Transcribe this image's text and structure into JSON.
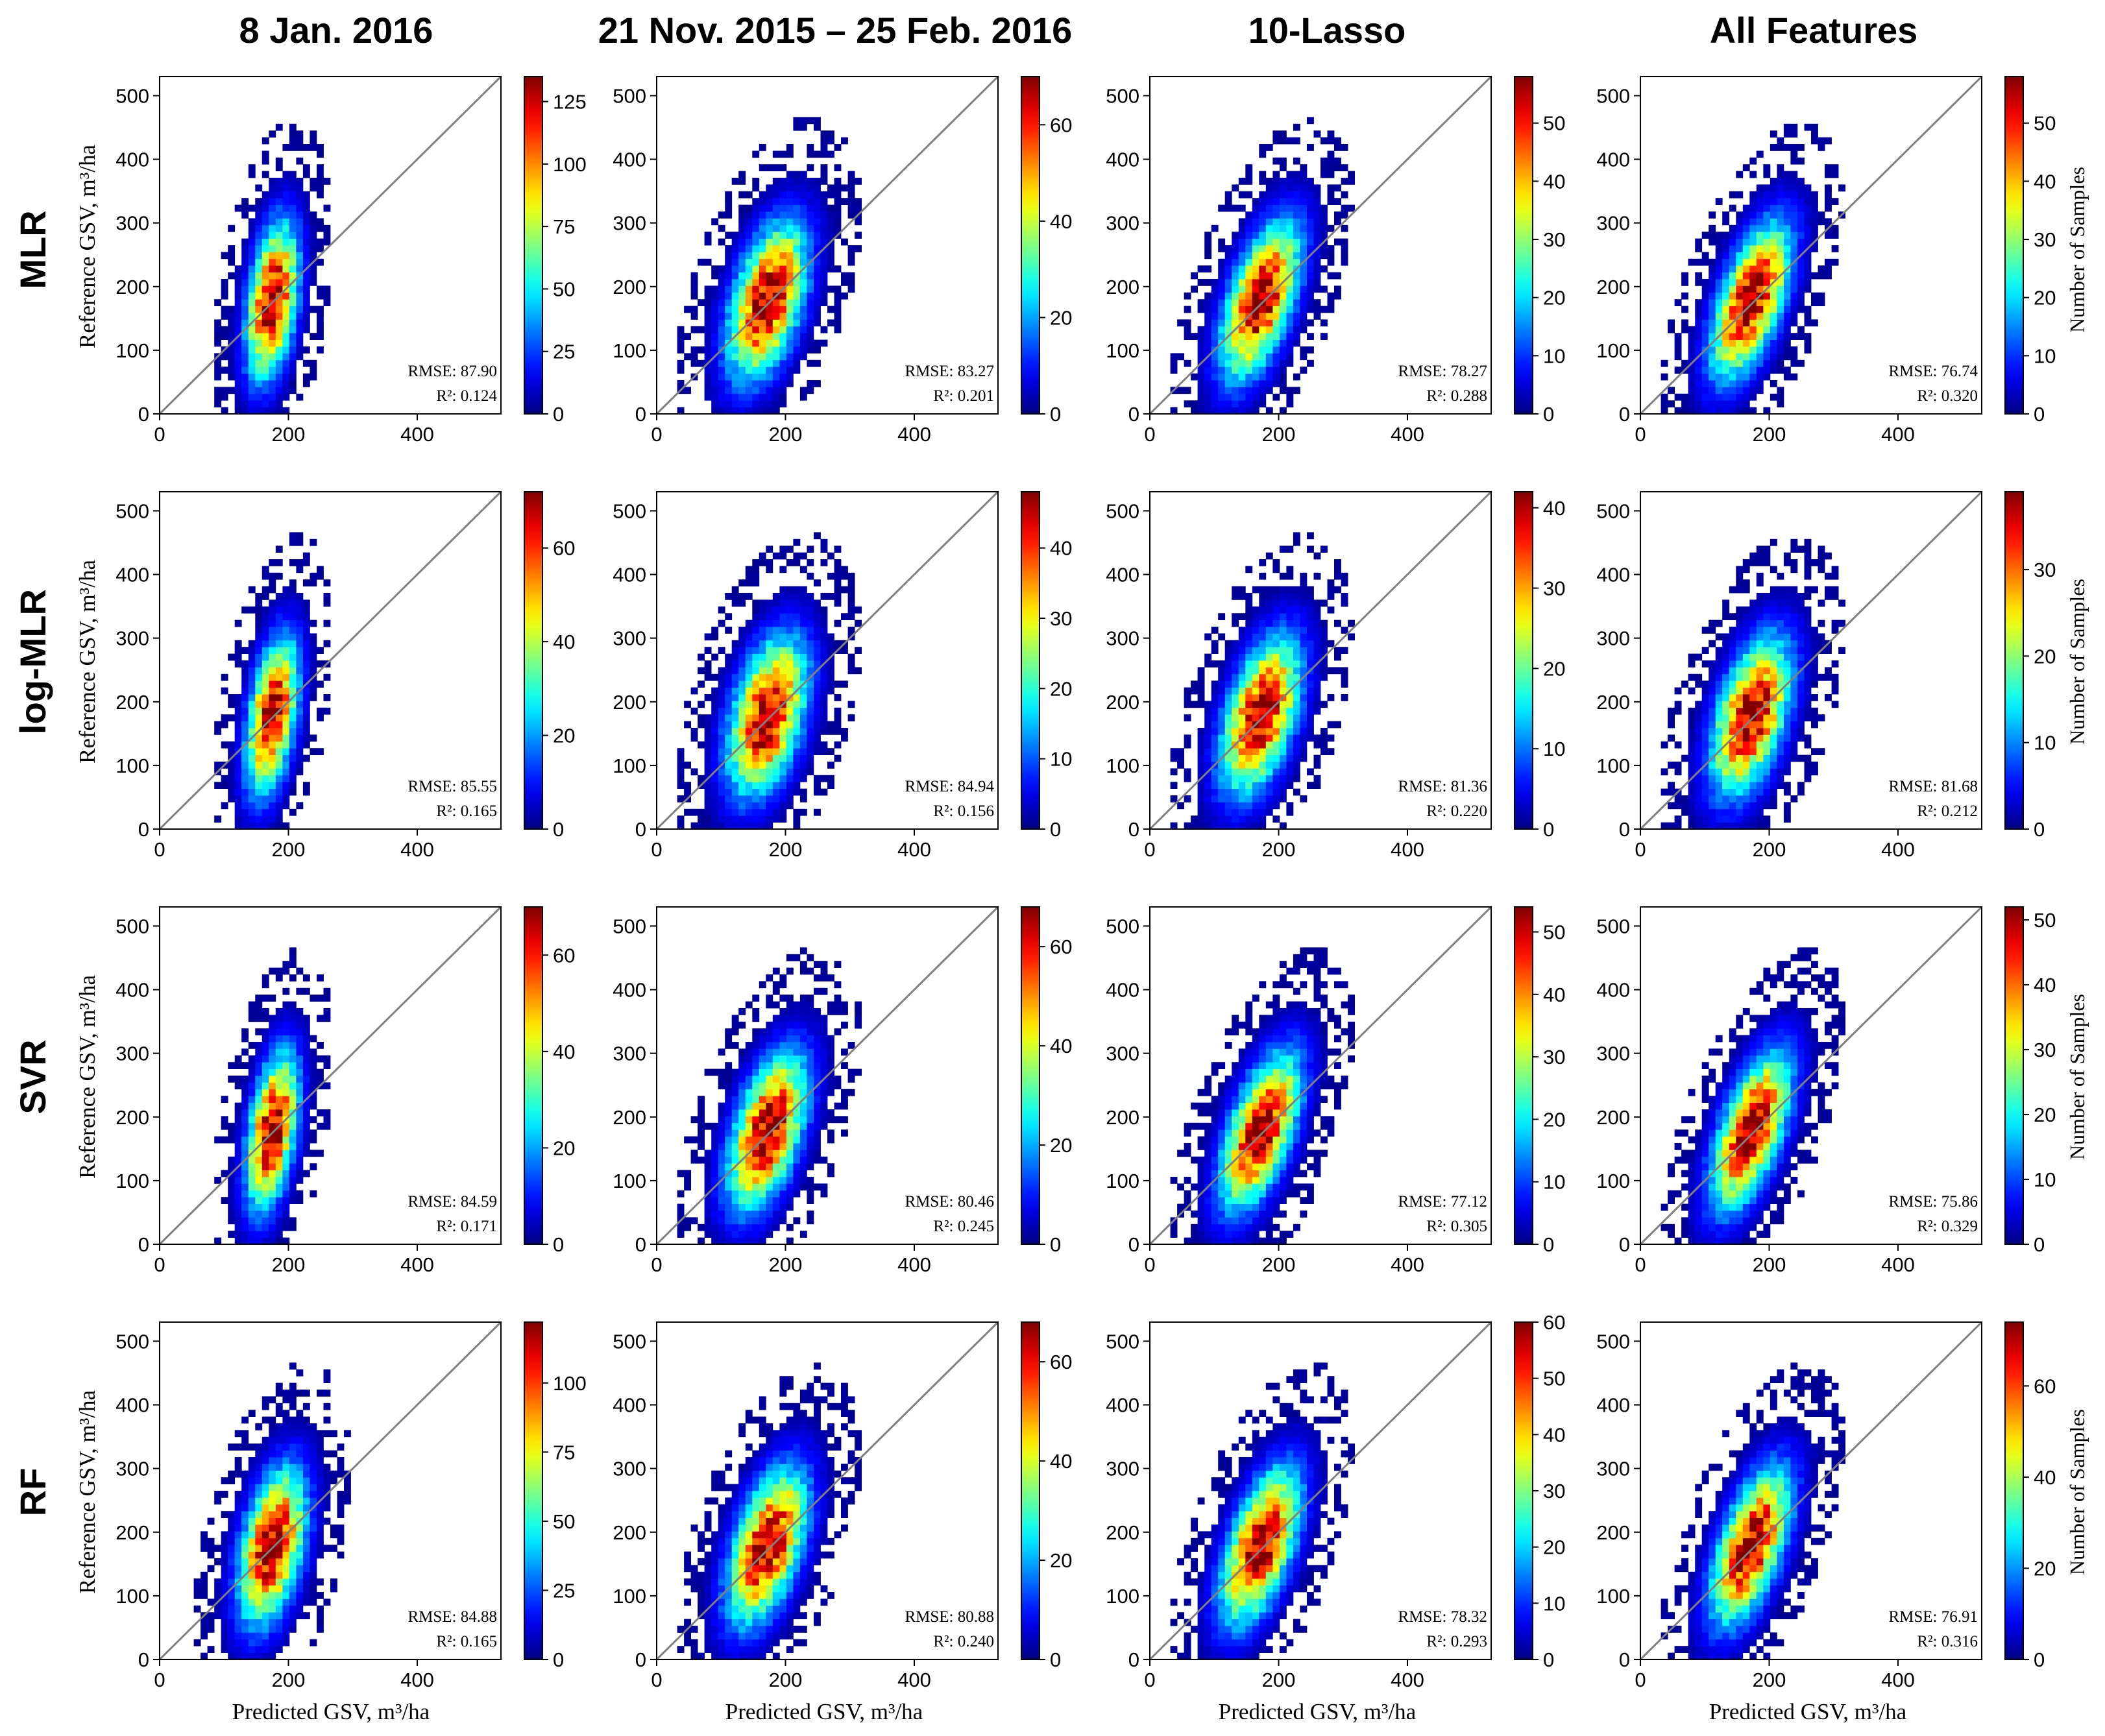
{
  "figure": {
    "column_titles": [
      "8 Jan. 2016",
      "21 Nov. 2015 – 25 Feb. 2016",
      "10-Lasso",
      "All Features"
    ],
    "row_titles": [
      "MLR",
      "log-MLR",
      "SVR",
      "RF"
    ],
    "x_label": "Predicted GSV, m³/ha",
    "y_label": "Reference GSV, m³/ha",
    "colorbar_label": "Number of Samples",
    "metric_rmse_prefix": "RMSE: ",
    "metric_r2_prefix": "R²: "
  },
  "chart_data": [
    {
      "type": "heatmap",
      "row": "MLR",
      "column": "8 Jan. 2016",
      "rmse": "87.90",
      "r2": "0.124",
      "xlim": [
        0,
        530
      ],
      "ylim": [
        0,
        530
      ],
      "x_ticks": [
        0,
        200,
        400
      ],
      "y_ticks": [
        0,
        100,
        200,
        300,
        400,
        500
      ],
      "colorbar_max": 135,
      "colorbar_ticks": [
        0,
        25,
        50,
        75,
        100,
        125
      ]
    },
    {
      "type": "heatmap",
      "row": "MLR",
      "column": "21 Nov. 2015 – 25 Feb. 2016",
      "rmse": "83.27",
      "r2": "0.201",
      "xlim": [
        0,
        530
      ],
      "ylim": [
        0,
        530
      ],
      "x_ticks": [
        0,
        200,
        400
      ],
      "y_ticks": [
        0,
        100,
        200,
        300,
        400,
        500
      ],
      "colorbar_max": 70,
      "colorbar_ticks": [
        0,
        20,
        40,
        60
      ]
    },
    {
      "type": "heatmap",
      "row": "MLR",
      "column": "10-Lasso",
      "rmse": "78.27",
      "r2": "0.288",
      "xlim": [
        0,
        530
      ],
      "ylim": [
        0,
        530
      ],
      "x_ticks": [
        0,
        200,
        400
      ],
      "y_ticks": [
        0,
        100,
        200,
        300,
        400,
        500
      ],
      "colorbar_max": 58,
      "colorbar_ticks": [
        0,
        10,
        20,
        30,
        40,
        50
      ]
    },
    {
      "type": "heatmap",
      "row": "MLR",
      "column": "All Features",
      "rmse": "76.74",
      "r2": "0.320",
      "xlim": [
        0,
        530
      ],
      "ylim": [
        0,
        530
      ],
      "x_ticks": [
        0,
        200,
        400
      ],
      "y_ticks": [
        0,
        100,
        200,
        300,
        400,
        500
      ],
      "colorbar_max": 58,
      "colorbar_ticks": [
        0,
        10,
        20,
        30,
        40,
        50
      ]
    },
    {
      "type": "heatmap",
      "row": "log-MLR",
      "column": "8 Jan. 2016",
      "rmse": "85.55",
      "r2": "0.165",
      "xlim": [
        0,
        530
      ],
      "ylim": [
        0,
        530
      ],
      "x_ticks": [
        0,
        200,
        400
      ],
      "y_ticks": [
        0,
        100,
        200,
        300,
        400,
        500
      ],
      "colorbar_max": 72,
      "colorbar_ticks": [
        0,
        20,
        40,
        60
      ]
    },
    {
      "type": "heatmap",
      "row": "log-MLR",
      "column": "21 Nov. 2015 – 25 Feb. 2016",
      "rmse": "84.94",
      "r2": "0.156",
      "xlim": [
        0,
        530
      ],
      "ylim": [
        0,
        530
      ],
      "x_ticks": [
        0,
        200,
        400
      ],
      "y_ticks": [
        0,
        100,
        200,
        300,
        400,
        500
      ],
      "colorbar_max": 48,
      "colorbar_ticks": [
        0,
        10,
        20,
        30,
        40
      ]
    },
    {
      "type": "heatmap",
      "row": "log-MLR",
      "column": "10-Lasso",
      "rmse": "81.36",
      "r2": "0.220",
      "xlim": [
        0,
        530
      ],
      "ylim": [
        0,
        530
      ],
      "x_ticks": [
        0,
        200,
        400
      ],
      "y_ticks": [
        0,
        100,
        200,
        300,
        400,
        500
      ],
      "colorbar_max": 42,
      "colorbar_ticks": [
        0,
        10,
        20,
        30,
        40
      ]
    },
    {
      "type": "heatmap",
      "row": "log-MLR",
      "column": "All Features",
      "rmse": "81.68",
      "r2": "0.212",
      "xlim": [
        0,
        530
      ],
      "ylim": [
        0,
        530
      ],
      "x_ticks": [
        0,
        200,
        400
      ],
      "y_ticks": [
        0,
        100,
        200,
        300,
        400,
        500
      ],
      "colorbar_max": 39,
      "colorbar_ticks": [
        0,
        10,
        20,
        30
      ]
    },
    {
      "type": "heatmap",
      "row": "SVR",
      "column": "8 Jan. 2016",
      "rmse": "84.59",
      "r2": "0.171",
      "xlim": [
        0,
        530
      ],
      "ylim": [
        0,
        530
      ],
      "x_ticks": [
        0,
        200,
        400
      ],
      "y_ticks": [
        0,
        100,
        200,
        300,
        400,
        500
      ],
      "colorbar_max": 70,
      "colorbar_ticks": [
        0,
        20,
        40,
        60
      ]
    },
    {
      "type": "heatmap",
      "row": "SVR",
      "column": "21 Nov. 2015 – 25 Feb. 2016",
      "rmse": "80.46",
      "r2": "0.245",
      "xlim": [
        0,
        530
      ],
      "ylim": [
        0,
        530
      ],
      "x_ticks": [
        0,
        200,
        400
      ],
      "y_ticks": [
        0,
        100,
        200,
        300,
        400,
        500
      ],
      "colorbar_max": 68,
      "colorbar_ticks": [
        0,
        20,
        40,
        60
      ]
    },
    {
      "type": "heatmap",
      "row": "SVR",
      "column": "10-Lasso",
      "rmse": "77.12",
      "r2": "0.305",
      "xlim": [
        0,
        530
      ],
      "ylim": [
        0,
        530
      ],
      "x_ticks": [
        0,
        200,
        400
      ],
      "y_ticks": [
        0,
        100,
        200,
        300,
        400,
        500
      ],
      "colorbar_max": 54,
      "colorbar_ticks": [
        0,
        10,
        20,
        30,
        40,
        50
      ]
    },
    {
      "type": "heatmap",
      "row": "SVR",
      "column": "All Features",
      "rmse": "75.86",
      "r2": "0.329",
      "xlim": [
        0,
        530
      ],
      "ylim": [
        0,
        530
      ],
      "x_ticks": [
        0,
        200,
        400
      ],
      "y_ticks": [
        0,
        100,
        200,
        300,
        400,
        500
      ],
      "colorbar_max": 52,
      "colorbar_ticks": [
        0,
        10,
        20,
        30,
        40,
        50
      ]
    },
    {
      "type": "heatmap",
      "row": "RF",
      "column": "8 Jan. 2016",
      "rmse": "84.88",
      "r2": "0.165",
      "xlim": [
        0,
        530
      ],
      "ylim": [
        0,
        530
      ],
      "x_ticks": [
        0,
        200,
        400
      ],
      "y_ticks": [
        0,
        100,
        200,
        300,
        400,
        500
      ],
      "colorbar_max": 122,
      "colorbar_ticks": [
        0,
        25,
        50,
        75,
        100
      ]
    },
    {
      "type": "heatmap",
      "row": "RF",
      "column": "21 Nov. 2015 – 25 Feb. 2016",
      "rmse": "80.88",
      "r2": "0.240",
      "xlim": [
        0,
        530
      ],
      "ylim": [
        0,
        530
      ],
      "x_ticks": [
        0,
        200,
        400
      ],
      "y_ticks": [
        0,
        100,
        200,
        300,
        400,
        500
      ],
      "colorbar_max": 68,
      "colorbar_ticks": [
        0,
        20,
        40,
        60
      ]
    },
    {
      "type": "heatmap",
      "row": "RF",
      "column": "10-Lasso",
      "rmse": "78.32",
      "r2": "0.293",
      "xlim": [
        0,
        530
      ],
      "ylim": [
        0,
        530
      ],
      "x_ticks": [
        0,
        200,
        400
      ],
      "y_ticks": [
        0,
        100,
        200,
        300,
        400,
        500
      ],
      "colorbar_max": 60,
      "colorbar_ticks": [
        0,
        10,
        20,
        30,
        40,
        50,
        60
      ]
    },
    {
      "type": "heatmap",
      "row": "RF",
      "column": "All Features",
      "rmse": "76.91",
      "r2": "0.316",
      "xlim": [
        0,
        530
      ],
      "ylim": [
        0,
        530
      ],
      "x_ticks": [
        0,
        200,
        400
      ],
      "y_ticks": [
        0,
        100,
        200,
        300,
        400,
        500
      ],
      "colorbar_max": 74,
      "colorbar_ticks": [
        0,
        20,
        40,
        60
      ]
    }
  ]
}
